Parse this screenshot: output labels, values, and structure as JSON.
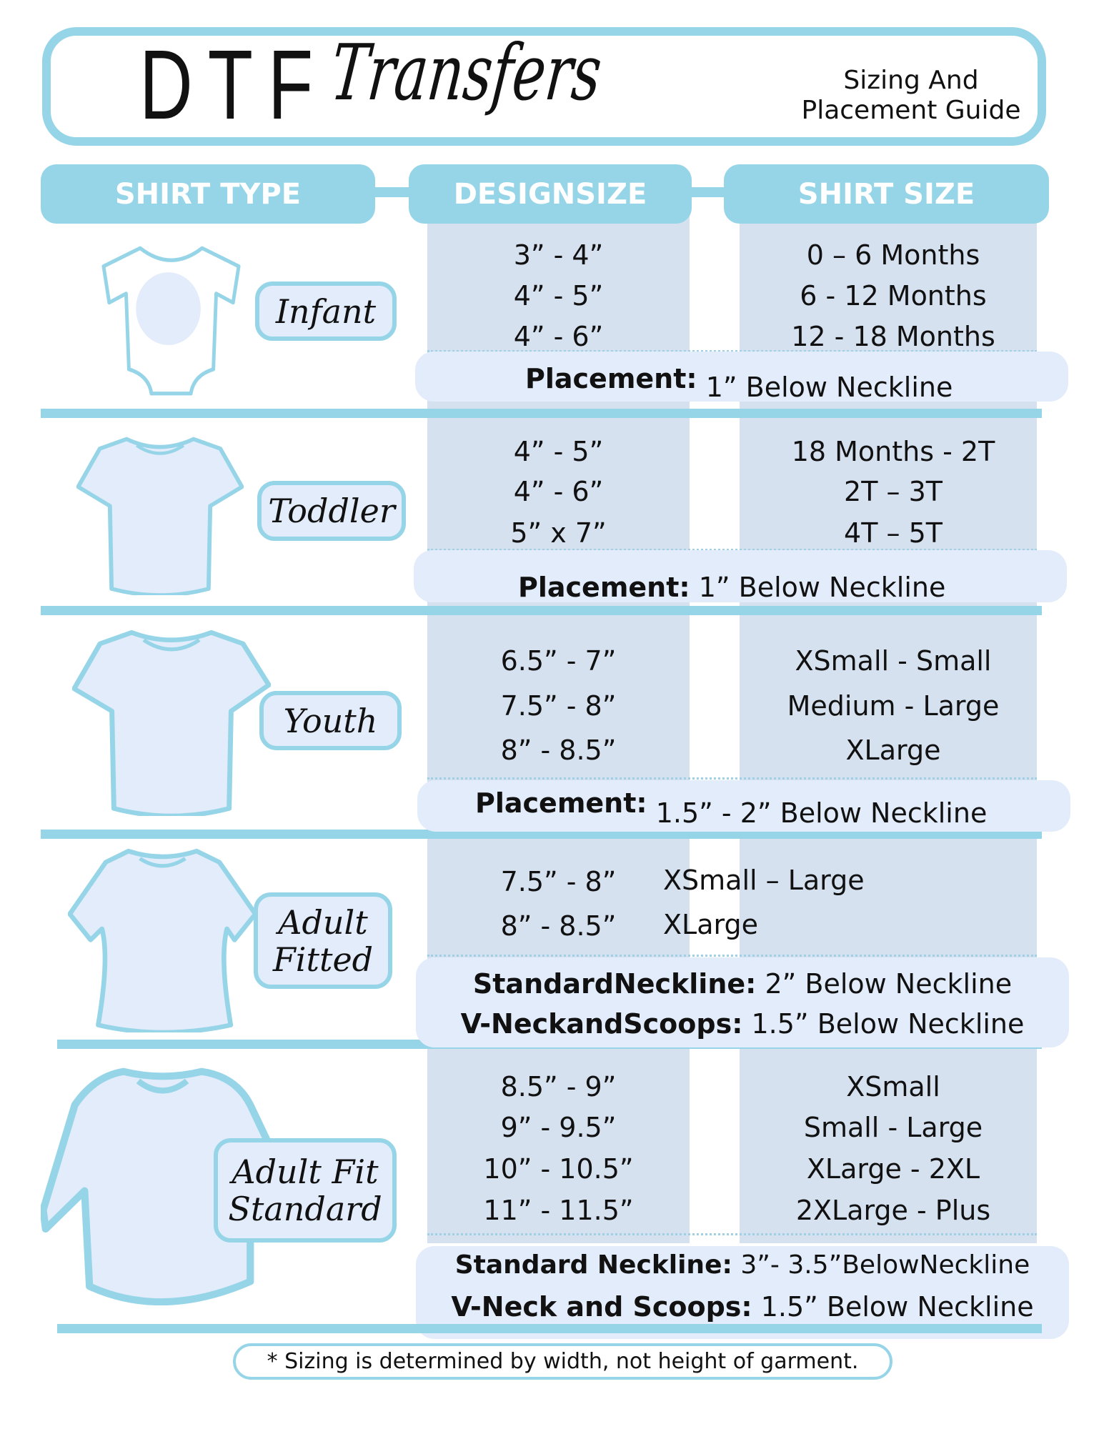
{
  "header": {
    "logo_block": "DTF",
    "logo_script": "Transfers",
    "subtitle_line1": "Sizing And",
    "subtitle_line2": "Placement Guide"
  },
  "columns": {
    "shirt_type": "SHIRT TYPE",
    "design_size": "DESIGNSIZE",
    "shirt_size": "SHIRT SIZE"
  },
  "colors": {
    "accent": "#96d4e8",
    "column_bg": "#d6e1f0",
    "pill_bg": "#e3ecfa",
    "shirt_fill": "#e3ecfa"
  },
  "rows": [
    {
      "type": "Infant",
      "icon": "onesie-icon",
      "design": [
        "3” - 4”",
        "4” - 5”",
        "4” - 6”"
      ],
      "sizes": [
        "0 – 6 Months",
        "6 - 12 Months",
        "12 - 18 Months"
      ],
      "placement": [
        {
          "label": "Placement:",
          "value": "1” Below Neckline"
        }
      ]
    },
    {
      "type": "Toddler",
      "icon": "tshirt-icon",
      "design": [
        "4” - 5”",
        "4” - 6”",
        "5” x 7”"
      ],
      "sizes": [
        "18 Months - 2T",
        "2T – 3T",
        "4T – 5T"
      ],
      "placement": [
        {
          "label": "Placement:",
          "value": "1” Below Neckline"
        }
      ]
    },
    {
      "type": "Youth",
      "icon": "tshirt-icon",
      "design": [
        "6.5” - 7”",
        "7.5” - 8”",
        "8” - 8.5”"
      ],
      "sizes": [
        "XSmall - Small",
        "Medium - Large",
        "XLarge"
      ],
      "placement": [
        {
          "label": "Placement:",
          "value": "1.5” - 2” Below Neckline"
        }
      ]
    },
    {
      "type": "Adult Fitted",
      "icon": "fitted-tshirt-icon",
      "design": [
        "7.5” - 8”",
        "8” - 8.5”"
      ],
      "sizes": [
        "XSmall – Large",
        "XLarge"
      ],
      "placement": [
        {
          "label": "StandardNeckline:",
          "value": "2” Below Neckline"
        },
        {
          "label": "V-NeckandScoops:",
          "value": "1.5” Below Neckline"
        }
      ]
    },
    {
      "type": "Adult Fit Standard",
      "icon": "tshirt-icon",
      "design": [
        "8.5” - 9”",
        "9” - 9.5”",
        "10” - 10.5”",
        "11” - 11.5”"
      ],
      "sizes": [
        "XSmall",
        "Small - Large",
        "XLarge - 2XL",
        "2XLarge - Plus"
      ],
      "placement": [
        {
          "label": "Standard Neckline:",
          "value": "3”- 3.5”BelowNeckline"
        },
        {
          "label": "V-Neck and Scoops:",
          "value": "1.5” Below Neckline"
        }
      ]
    }
  ],
  "footer": {
    "note": "* Sizing is determined by width, not height of garment."
  }
}
